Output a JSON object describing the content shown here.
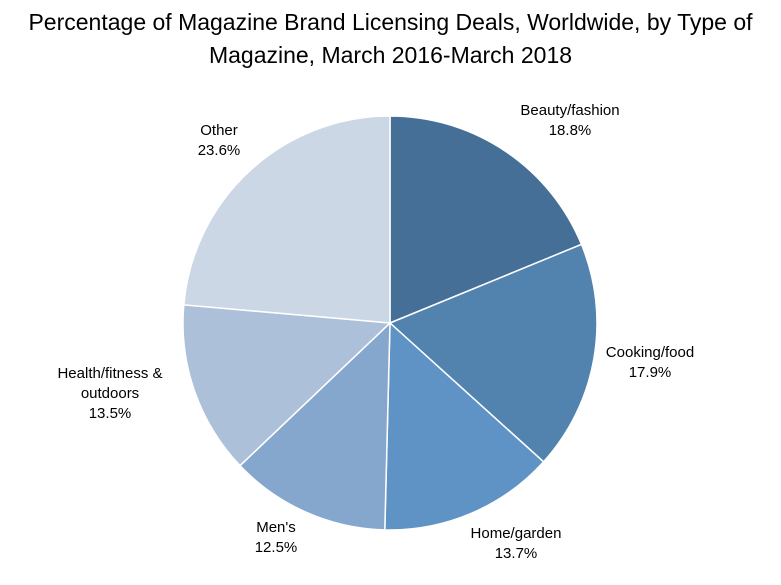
{
  "chart_data": {
    "type": "pie",
    "title": "Percentage of Magazine Brand Licensing Deals, Worldwide, by Type of Magazine, March 2016-March 2018",
    "title_lines": [
      "Percentage of Magazine Brand Licensing Deals, Worldwide, by Type of",
      "Magazine, March 2016-March 2018"
    ],
    "unit": "%",
    "start_angle": "12 o'clock",
    "direction": "clockwise",
    "slices": [
      {
        "label": "Beauty/fashion",
        "label_lines": [
          "Beauty/fashion"
        ],
        "value": 18.8,
        "value_text": "18.8%",
        "color": "#466f98"
      },
      {
        "label": "Cooking/food",
        "label_lines": [
          "Cooking/food"
        ],
        "value": 17.9,
        "value_text": "17.9%",
        "color": "#5283af"
      },
      {
        "label": "Home/garden",
        "label_lines": [
          "Home/garden"
        ],
        "value": 13.7,
        "value_text": "13.7%",
        "color": "#5f93c5"
      },
      {
        "label": "Men's",
        "label_lines": [
          "Men's"
        ],
        "value": 12.5,
        "value_text": "12.5%",
        "color": "#86a7cd"
      },
      {
        "label": "Health/fitness & outdoors",
        "label_lines": [
          "Health/fitness &",
          "outdoors"
        ],
        "value": 13.5,
        "value_text": "13.5%",
        "color": "#adc0da"
      },
      {
        "label": "Other",
        "label_lines": [
          "Other"
        ],
        "value": 23.6,
        "value_text": "23.6%",
        "color": "#ccd7e6"
      }
    ],
    "legend": "none",
    "data_labels": "outside"
  }
}
